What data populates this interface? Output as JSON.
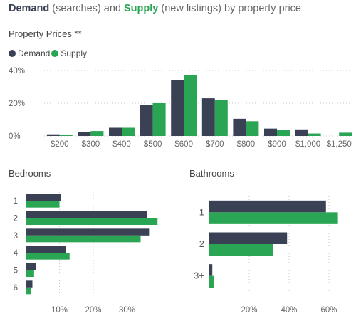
{
  "header": {
    "demand_word": "Demand",
    "text_1": " (searches) and ",
    "supply_word": "Supply",
    "text_2": " (new listings) by property price"
  },
  "colors": {
    "demand": "#3b4155",
    "supply": "#2aa553",
    "grid": "#c8c8c8",
    "axis_text": "#666666"
  },
  "chart_data": [
    {
      "type": "bar",
      "title": "Property Prices **",
      "legend": {
        "placement": "top-left",
        "items": [
          "Demand",
          "Supply"
        ]
      },
      "categories": [
        "$200",
        "$300",
        "$400",
        "$500",
        "$600",
        "$700",
        "$800",
        "$900",
        "$1,000",
        "$1,250"
      ],
      "series": [
        {
          "name": "Demand",
          "values": [
            1,
            2.5,
            5,
            19,
            34,
            23,
            10.5,
            4.5,
            4,
            0
          ]
        },
        {
          "name": "Supply",
          "values": [
            0.8,
            3,
            5,
            20,
            37,
            22,
            9,
            3.5,
            1.5,
            2
          ]
        }
      ],
      "yticks": [
        "0%",
        "20%",
        "40%"
      ],
      "ylim": [
        0,
        40
      ],
      "grid": true
    },
    {
      "type": "bar",
      "orientation": "horizontal",
      "title": "Bedrooms",
      "categories": [
        "1",
        "2",
        "3",
        "4",
        "5",
        "6"
      ],
      "series": [
        {
          "name": "Demand",
          "values": [
            10.5,
            36,
            36.5,
            12,
            3,
            2
          ]
        },
        {
          "name": "Supply",
          "values": [
            10,
            39,
            34,
            13,
            2.5,
            1.5
          ]
        }
      ],
      "xticks": [
        "10%",
        "20%",
        "30%"
      ],
      "xlim": [
        0,
        40
      ],
      "grid": true
    },
    {
      "type": "bar",
      "orientation": "horizontal",
      "title": "Bathrooms",
      "categories": [
        "1",
        "2",
        "3+"
      ],
      "series": [
        {
          "name": "Demand",
          "values": [
            58.5,
            39,
            1.5
          ]
        },
        {
          "name": "Supply",
          "values": [
            64.5,
            32,
            2.5
          ]
        }
      ],
      "xticks": [
        "20%",
        "40%",
        "60%"
      ],
      "xlim": [
        0,
        65
      ],
      "grid": true
    }
  ]
}
